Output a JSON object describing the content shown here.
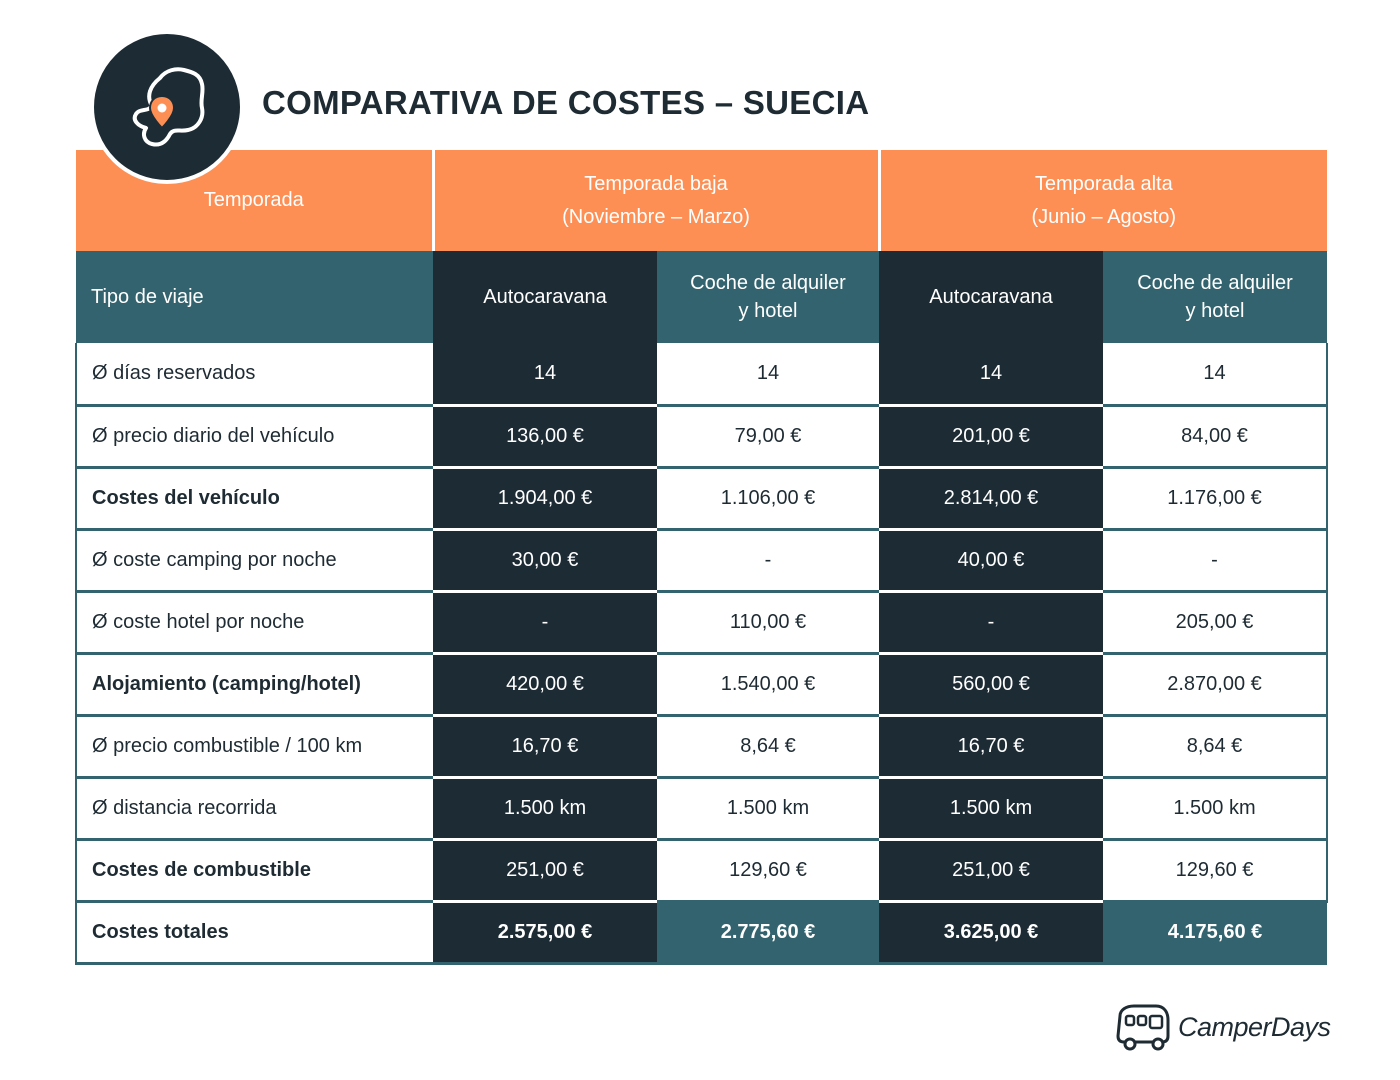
{
  "title": "COMPARATIVA DE COSTES – SUECIA",
  "header": {
    "season_label": "Temporada",
    "low_season_line1": "Temporada baja",
    "low_season_line2": "(Noviembre – Marzo)",
    "high_season_line1": "Temporada alta",
    "high_season_line2": "(Junio – Agosto)"
  },
  "types": {
    "label": "Tipo de viaje",
    "camper": "Autocaravana",
    "car_line1": "Coche de alquiler",
    "car_line2": "y hotel"
  },
  "rows": [
    {
      "label": "Ø días reservados",
      "bold": false,
      "values": [
        "14",
        "14",
        "14",
        "14"
      ]
    },
    {
      "label": "Ø precio diario del vehículo",
      "bold": false,
      "values": [
        "136,00 €",
        "79,00 €",
        "201,00 €",
        "84,00 €"
      ]
    },
    {
      "label": "Costes del vehículo",
      "bold": true,
      "values": [
        "1.904,00 €",
        "1.106,00 €",
        "2.814,00 €",
        "1.176,00 €"
      ]
    },
    {
      "label": "Ø coste camping por noche",
      "bold": false,
      "values": [
        "30,00 €",
        "-",
        "40,00 €",
        "-"
      ]
    },
    {
      "label": "Ø coste hotel por noche",
      "bold": false,
      "values": [
        "-",
        "110,00 €",
        "-",
        "205,00 €"
      ]
    },
    {
      "label": "Alojamiento (camping/hotel)",
      "bold": true,
      "values": [
        "420,00 €",
        "1.540,00 €",
        "560,00 €",
        "2.870,00 €"
      ]
    },
    {
      "label": "Ø precio combustible / 100 km",
      "bold": false,
      "values": [
        "16,70 €",
        "8,64 €",
        "16,70 €",
        "8,64 €"
      ]
    },
    {
      "label": "Ø distancia recorrida",
      "bold": false,
      "values": [
        "1.500 km",
        "1.500 km",
        "1.500 km",
        "1.500 km"
      ]
    },
    {
      "label": "Costes de combustible",
      "bold": true,
      "values": [
        "251,00 €",
        "129,60 €",
        "251,00 €",
        "129,60 €"
      ]
    }
  ],
  "total": {
    "label": "Costes totales",
    "values": [
      "2.575,00 €",
      "2.775,60 €",
      "3.625,00 €",
      "4.175,60 €"
    ]
  },
  "brand": {
    "name": "CamperDays"
  },
  "icons": {
    "badge": "map-pin-region-icon",
    "brand": "camper-van-icon"
  },
  "colors": {
    "orange": "#fd8f55",
    "dark": "#1d2b34",
    "teal": "#33636e"
  }
}
